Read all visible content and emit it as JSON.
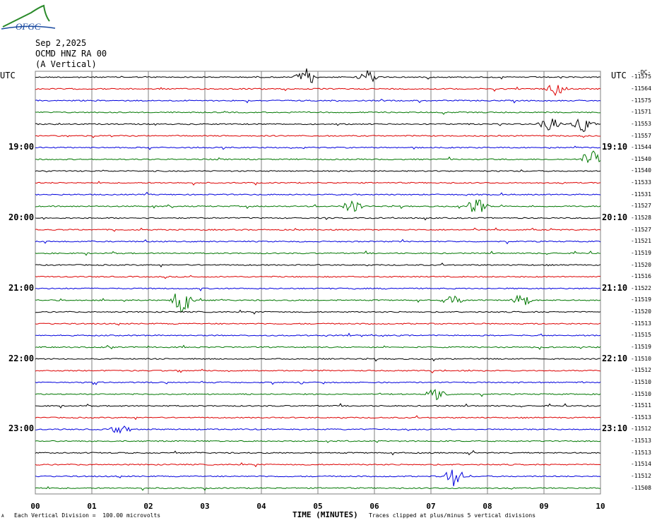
{
  "logo_text": "OFGC",
  "header": {
    "date": "Sep 2,2025",
    "station": "OCMD HNZ RA 00",
    "component": "(A Vertical)",
    "utc_left": "UTC",
    "utc_right": "UTC",
    "right_top_label": "-DC-"
  },
  "footer": {
    "scale_note": "Each Vertical Division =  100.00 microvolts",
    "clip_note": "Traces clipped at plus/minus 5 vertical divisions",
    "corner_mark": "A"
  },
  "colors": {
    "trace_cycle": [
      "#000000",
      "#dd0000",
      "#0000dd",
      "#007700"
    ],
    "grid": "#808080"
  },
  "chart_data": {
    "type": "line",
    "title": "OCMD HNZ RA 00 (A Vertical) Sep 2,2025",
    "xlabel": "TIME (MINUTES)",
    "ylabel": "",
    "xlim": [
      0,
      10
    ],
    "x_ticks": [
      "00",
      "01",
      "02",
      "03",
      "04",
      "05",
      "06",
      "07",
      "08",
      "09",
      "10"
    ],
    "rows": 36,
    "row_minutes": 10,
    "hour_labels_left": [
      {
        "row": 6,
        "text": "19:00"
      },
      {
        "row": 12,
        "text": "20:00"
      },
      {
        "row": 18,
        "text": "21:00"
      },
      {
        "row": 24,
        "text": "22:00"
      },
      {
        "row": 30,
        "text": "23:00"
      }
    ],
    "hour_labels_right": [
      {
        "row": 6,
        "text": "19:10"
      },
      {
        "row": 12,
        "text": "20:10"
      },
      {
        "row": 18,
        "text": "21:10"
      },
      {
        "row": 24,
        "text": "22:10"
      },
      {
        "row": 30,
        "text": "23:10"
      }
    ],
    "dc_offsets": [
      "-11575",
      "-11564",
      "-11575",
      "-11571",
      "-11553",
      "-11557",
      "-11544",
      "-11540",
      "-11540",
      "-11533",
      "-11531",
      "-11527",
      "-11528",
      "-11527",
      "-11521",
      "-11519",
      "-11520",
      "-11516",
      "-11522",
      "-11519",
      "-11520",
      "-11513",
      "-11515",
      "-11519",
      "-11510",
      "-11512",
      "-11510",
      "-11510",
      "-11511",
      "-11513",
      "-11512",
      "-11513",
      "-11513",
      "-11514",
      "-11512",
      "-11508"
    ],
    "events": [
      {
        "row": 0,
        "t": 4.8,
        "amp": 0.8
      },
      {
        "row": 0,
        "t": 5.9,
        "amp": 0.6
      },
      {
        "row": 1,
        "t": 9.2,
        "amp": 0.6
      },
      {
        "row": 4,
        "t": 9.1,
        "amp": 0.6
      },
      {
        "row": 4,
        "t": 9.7,
        "amp": 0.7
      },
      {
        "row": 7,
        "t": 9.85,
        "amp": 0.9
      },
      {
        "row": 11,
        "t": 5.6,
        "amp": 0.6
      },
      {
        "row": 11,
        "t": 7.8,
        "amp": 0.8
      },
      {
        "row": 19,
        "t": 2.6,
        "amp": 1.4
      },
      {
        "row": 19,
        "t": 7.4,
        "amp": 0.5
      },
      {
        "row": 19,
        "t": 8.6,
        "amp": 0.6
      },
      {
        "row": 27,
        "t": 7.1,
        "amp": 0.6
      },
      {
        "row": 30,
        "t": 1.5,
        "amp": 0.5
      },
      {
        "row": 34,
        "t": 7.4,
        "amp": 0.9
      }
    ],
    "scale": "100.00 microvolts per vertical division",
    "clip": "plus/minus 5 vertical divisions",
    "grid": true
  }
}
